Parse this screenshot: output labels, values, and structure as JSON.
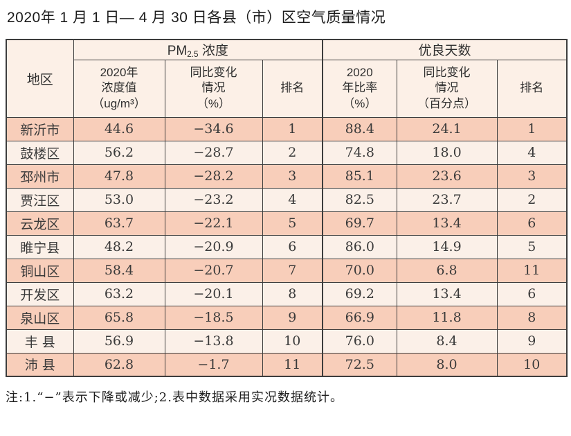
{
  "page": {
    "title": "2020年 1 月 1 日— 4 月 30 日各县（市）区空气质量情况",
    "footnote": "注:1.“−”表示下降或减少;2.表中数据采用实况数据统计。"
  },
  "colors": {
    "row_salmon": "#f8ceba",
    "row_light": "#fbf0e8",
    "header_bg": "#fcf0e7",
    "border": "#3d3d3d"
  },
  "table": {
    "header": {
      "region": "地区",
      "pm25_group": {
        "prefix": "PM",
        "sub": "2.5",
        "suffix": " 浓度"
      },
      "good_days_group": "优良天数",
      "pm_value": {
        "l1": "2020年",
        "l2": "浓度值",
        "l3": "（ug/m³）"
      },
      "pm_change": {
        "l1": "同比变化",
        "l2": "情况",
        "l3": "（%）"
      },
      "pm_rank": "排名",
      "good_rate": {
        "l1": "2020",
        "l2": "年比率",
        "l3": "（%）"
      },
      "good_change": {
        "l1": "同比变化",
        "l2": "情况",
        "l3": "（百分点）"
      },
      "good_rank": "排名"
    },
    "rows": [
      [
        "新沂市",
        "44.6",
        "−34.6",
        "1",
        "88.4",
        "24.1",
        "1"
      ],
      [
        "鼓楼区",
        "56.2",
        "−28.7",
        "2",
        "74.8",
        "18.0",
        "4"
      ],
      [
        "邳州市",
        "47.8",
        "−28.2",
        "3",
        "85.1",
        "23.6",
        "3"
      ],
      [
        "贾汪区",
        "53.0",
        "−23.2",
        "4",
        "82.5",
        "23.7",
        "2"
      ],
      [
        "云龙区",
        "63.7",
        "−22.1",
        "5",
        "69.7",
        "13.4",
        "6"
      ],
      [
        "睢宁县",
        "48.2",
        "−20.9",
        "6",
        "86.0",
        "14.9",
        "5"
      ],
      [
        "铜山区",
        "58.4",
        "−20.7",
        "7",
        "70.0",
        "6.8",
        "11"
      ],
      [
        "开发区",
        "63.2",
        "−20.1",
        "8",
        "69.2",
        "13.4",
        "6"
      ],
      [
        "泉山区",
        "65.8",
        "−18.5",
        "9",
        "66.9",
        "11.8",
        "8"
      ],
      [
        "丰 县",
        "56.9",
        "−13.8",
        "10",
        "76.0",
        "8.4",
        "9"
      ],
      [
        "沛 县",
        "62.8",
        "−1.7",
        "11",
        "72.5",
        "8.0",
        "10"
      ]
    ]
  }
}
